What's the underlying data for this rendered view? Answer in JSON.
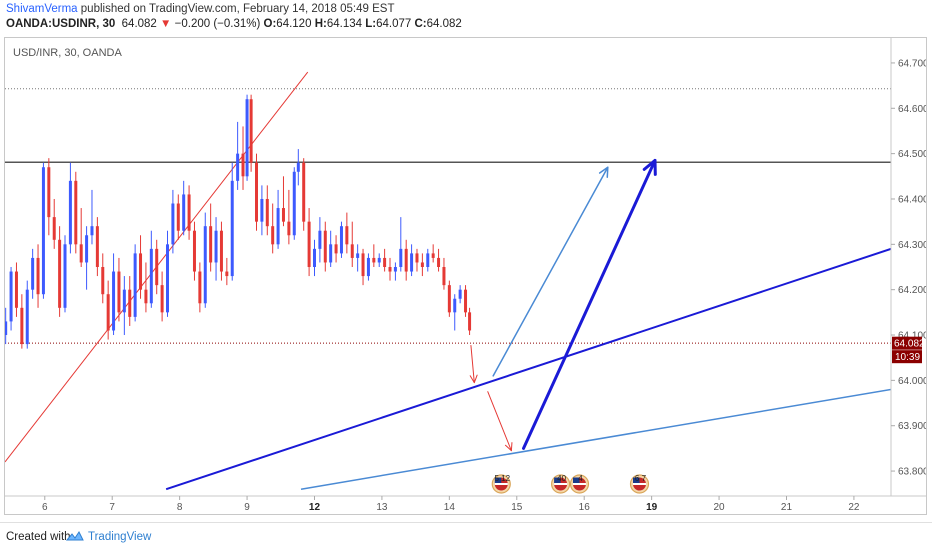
{
  "header": {
    "author": "ShivamVerma",
    "published": " published on TradingView.com, February 14, 2018 05:49 EST",
    "symbol": "OANDA:USDINR, 30",
    "price": "64.082",
    "arrow": "▼",
    "change": "−0.200 (−0.31%)",
    "o_label": "O:",
    "o_value": "64.120",
    "h_label": "H:",
    "h_value": "64.134",
    "l_label": "L:",
    "l_value": "64.077",
    "c_label": "C:",
    "c_value": "64.082"
  },
  "chart_label": "USD/INR, 30, OANDA",
  "price_tag": {
    "value": "64.082",
    "countdown": "10:39"
  },
  "footer": {
    "created_with": "Created with",
    "brand": "TradingView"
  },
  "colors": {
    "bull": "#3d5afe",
    "bear": "#e53935",
    "thick_arrow": "#1a1ad6",
    "thin_arrow": "#4a8ad4",
    "red_trend": "#e53935",
    "resistance": "#555555",
    "price_tag": "#8b0000"
  },
  "chart_data": {
    "type": "candlestick",
    "title": "USD/INR, 30, OANDA",
    "x_ticks": [
      {
        "label": "6",
        "x": 6
      },
      {
        "label": "7",
        "x": 7
      },
      {
        "label": "8",
        "x": 8
      },
      {
        "label": "9",
        "x": 9
      },
      {
        "label": "12",
        "x": 10
      },
      {
        "label": "13",
        "x": 11
      },
      {
        "label": "14",
        "x": 12
      },
      {
        "label": "15",
        "x": 13
      },
      {
        "label": "16",
        "x": 14
      },
      {
        "label": "19",
        "x": 15
      },
      {
        "label": "20",
        "x": 16
      },
      {
        "label": "21",
        "x": 17
      },
      {
        "label": "22",
        "x": 18
      }
    ],
    "bold_ticks": [
      "12",
      "19"
    ],
    "y_ticks": [
      63.8,
      63.9,
      64.0,
      64.1,
      64.2,
      64.3,
      64.4,
      64.5,
      64.6,
      64.7
    ],
    "ylim": [
      63.745,
      64.755
    ],
    "xlim": [
      5.41,
      18.55
    ],
    "candles": [
      [
        5.42,
        64.1,
        64.16,
        64.08,
        64.13
      ],
      [
        5.5,
        64.13,
        64.25,
        64.11,
        64.24
      ],
      [
        5.58,
        64.24,
        64.26,
        64.14,
        64.16
      ],
      [
        5.66,
        64.16,
        64.19,
        64.07,
        64.08
      ],
      [
        5.74,
        64.08,
        64.22,
        64.07,
        64.2
      ],
      [
        5.82,
        64.2,
        64.29,
        64.18,
        64.27
      ],
      [
        5.9,
        64.27,
        64.3,
        64.16,
        64.19
      ],
      [
        5.98,
        64.19,
        64.48,
        64.18,
        64.47
      ],
      [
        6.06,
        64.47,
        64.49,
        64.32,
        64.36
      ],
      [
        6.14,
        64.36,
        64.4,
        64.29,
        64.31
      ],
      [
        6.22,
        64.31,
        64.34,
        64.14,
        64.16
      ],
      [
        6.3,
        64.16,
        64.32,
        64.15,
        64.3
      ],
      [
        6.38,
        64.3,
        64.48,
        64.28,
        64.44
      ],
      [
        6.46,
        64.44,
        64.46,
        64.28,
        64.3
      ],
      [
        6.54,
        64.3,
        64.38,
        64.25,
        64.26
      ],
      [
        6.62,
        64.26,
        64.34,
        64.2,
        64.32
      ],
      [
        6.7,
        64.32,
        64.42,
        64.3,
        64.34
      ],
      [
        6.78,
        64.34,
        64.36,
        64.23,
        64.25
      ],
      [
        6.86,
        64.25,
        64.28,
        64.17,
        64.19
      ],
      [
        6.94,
        64.19,
        64.22,
        64.09,
        64.11
      ],
      [
        7.02,
        64.11,
        64.28,
        64.1,
        64.24
      ],
      [
        7.1,
        64.24,
        64.27,
        64.13,
        64.15
      ],
      [
        7.18,
        64.15,
        64.23,
        64.1,
        64.2
      ],
      [
        7.26,
        64.2,
        64.23,
        64.12,
        64.14
      ],
      [
        7.34,
        64.14,
        64.3,
        64.13,
        64.28
      ],
      [
        7.42,
        64.28,
        64.32,
        64.18,
        64.2
      ],
      [
        7.5,
        64.2,
        64.26,
        64.15,
        64.17
      ],
      [
        7.58,
        64.17,
        64.33,
        64.16,
        64.29
      ],
      [
        7.66,
        64.29,
        64.31,
        64.19,
        64.21
      ],
      [
        7.74,
        64.21,
        64.24,
        64.13,
        64.15
      ],
      [
        7.82,
        64.15,
        64.33,
        64.14,
        64.3
      ],
      [
        7.9,
        64.3,
        64.42,
        64.28,
        64.39
      ],
      [
        7.98,
        64.39,
        64.41,
        64.31,
        64.33
      ],
      [
        8.06,
        64.33,
        64.44,
        64.32,
        64.41
      ],
      [
        8.14,
        64.41,
        64.43,
        64.31,
        64.33
      ],
      [
        8.22,
        64.33,
        64.35,
        64.22,
        64.24
      ],
      [
        8.3,
        64.24,
        64.26,
        64.15,
        64.17
      ],
      [
        8.38,
        64.17,
        64.37,
        64.16,
        64.34
      ],
      [
        8.46,
        64.34,
        64.39,
        64.24,
        64.26
      ],
      [
        8.54,
        64.26,
        64.36,
        64.22,
        64.33
      ],
      [
        8.62,
        64.33,
        64.35,
        64.22,
        64.24
      ],
      [
        8.7,
        64.24,
        64.27,
        64.21,
        64.23
      ],
      [
        8.78,
        64.23,
        64.48,
        64.22,
        64.44
      ],
      [
        8.86,
        64.44,
        64.57,
        64.42,
        64.5
      ],
      [
        8.94,
        64.5,
        64.56,
        64.42,
        64.45
      ],
      [
        9.0,
        64.45,
        64.63,
        64.44,
        64.62
      ],
      [
        9.06,
        64.62,
        64.63,
        64.46,
        64.48
      ],
      [
        9.14,
        64.48,
        64.5,
        64.33,
        64.35
      ],
      [
        9.22,
        64.35,
        64.43,
        64.32,
        64.4
      ],
      [
        9.3,
        64.4,
        64.43,
        64.32,
        64.34
      ],
      [
        9.38,
        64.34,
        64.39,
        64.28,
        64.3
      ],
      [
        9.46,
        64.3,
        64.42,
        64.29,
        64.38
      ],
      [
        9.54,
        64.38,
        64.45,
        64.34,
        64.35
      ],
      [
        9.62,
        64.35,
        64.42,
        64.3,
        64.32
      ],
      [
        9.7,
        64.32,
        64.47,
        64.31,
        64.46
      ],
      [
        9.76,
        64.46,
        64.51,
        64.43,
        64.48
      ],
      [
        9.84,
        64.48,
        64.49,
        64.33,
        64.35
      ],
      [
        9.92,
        64.35,
        64.38,
        64.23,
        64.25
      ],
      [
        10.0,
        64.25,
        64.31,
        64.23,
        64.29
      ],
      [
        10.08,
        64.29,
        64.36,
        64.26,
        64.33
      ],
      [
        10.16,
        64.33,
        64.35,
        64.24,
        64.26
      ],
      [
        10.24,
        64.26,
        64.33,
        64.25,
        64.3
      ],
      [
        10.32,
        64.3,
        64.32,
        64.26,
        64.28
      ],
      [
        10.4,
        64.28,
        64.35,
        64.27,
        64.34
      ],
      [
        10.48,
        64.34,
        64.37,
        64.28,
        64.3
      ],
      [
        10.56,
        64.3,
        64.35,
        64.25,
        64.27
      ],
      [
        10.64,
        64.27,
        64.3,
        64.24,
        64.28
      ],
      [
        10.72,
        64.28,
        64.29,
        64.21,
        64.23
      ],
      [
        10.8,
        64.23,
        64.28,
        64.22,
        64.27
      ],
      [
        10.88,
        64.27,
        64.3,
        64.25,
        64.26
      ],
      [
        10.96,
        64.26,
        64.28,
        64.25,
        64.27
      ],
      [
        11.04,
        64.27,
        64.29,
        64.24,
        64.25
      ],
      [
        11.12,
        64.25,
        64.27,
        64.22,
        64.24
      ],
      [
        11.2,
        64.24,
        64.26,
        64.22,
        64.25
      ],
      [
        11.28,
        64.25,
        64.36,
        64.24,
        64.29
      ],
      [
        11.36,
        64.29,
        64.31,
        64.22,
        64.24
      ],
      [
        11.44,
        64.24,
        64.3,
        64.23,
        64.28
      ],
      [
        11.52,
        64.28,
        64.29,
        64.24,
        64.26
      ],
      [
        11.6,
        64.26,
        64.28,
        64.23,
        64.25
      ],
      [
        11.68,
        64.25,
        64.29,
        64.24,
        64.28
      ],
      [
        11.76,
        64.28,
        64.3,
        64.26,
        64.27
      ],
      [
        11.84,
        64.27,
        64.29,
        64.24,
        64.25
      ],
      [
        11.92,
        64.25,
        64.27,
        64.2,
        64.21
      ],
      [
        12.0,
        64.21,
        64.22,
        64.14,
        64.15
      ],
      [
        12.08,
        64.15,
        64.19,
        64.11,
        64.18
      ],
      [
        12.16,
        64.18,
        64.21,
        64.17,
        64.2
      ],
      [
        12.24,
        64.2,
        64.21,
        64.14,
        64.15
      ],
      [
        12.3,
        64.15,
        64.16,
        64.1,
        64.11
      ]
    ],
    "red_trendline": {
      "from": [
        5.41,
        63.82
      ],
      "to": [
        9.9,
        64.68
      ]
    },
    "resistance_level": 64.481,
    "top_dotted_level": 64.643,
    "current_price_level": 64.082,
    "blue_trendline_thick": {
      "from": [
        7.8,
        63.76
      ],
      "to": [
        18.55,
        64.29
      ]
    },
    "blue_trendline_thin": {
      "from": [
        9.8,
        63.76
      ],
      "to": [
        18.55,
        63.98
      ]
    },
    "arrows": [
      {
        "kind": "red-down",
        "from": [
          12.32,
          64.077
        ],
        "to": [
          12.37,
          63.995
        ]
      },
      {
        "kind": "red-down",
        "from": [
          12.57,
          63.975
        ],
        "to": [
          12.92,
          63.845
        ]
      },
      {
        "kind": "thin-blue-up",
        "from": [
          12.65,
          64.01
        ],
        "to": [
          14.35,
          64.47
        ]
      },
      {
        "kind": "thick-blue-up",
        "from": [
          13.1,
          63.85
        ],
        "to": [
          15.05,
          64.485
        ]
      }
    ],
    "event_markers": [
      {
        "x": 12.77,
        "label": "5 12"
      },
      {
        "x": 13.65,
        "label": "40"
      },
      {
        "x": 13.93,
        "label": "4"
      },
      {
        "x": 14.82,
        "label": "6 7"
      }
    ]
  }
}
